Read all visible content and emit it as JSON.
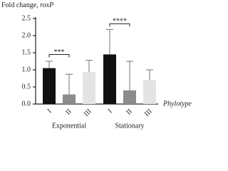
{
  "chart_data": {
    "type": "bar",
    "ylabel": [
      "Fold change,",
      "roxP"
    ],
    "xlabel": "Phylotype",
    "categories": [
      "I",
      "II",
      "III",
      "I",
      "II",
      "III"
    ],
    "groups": [
      "Exponential",
      "Stationary"
    ],
    "values": [
      1.05,
      0.28,
      0.93,
      1.45,
      0.4,
      0.7
    ],
    "errors": [
      0.2,
      0.59,
      0.35,
      0.73,
      0.85,
      0.3
    ],
    "colors": [
      "#111111",
      "#8c8c8c",
      "#e4e4e4",
      "#111111",
      "#8c8c8c",
      "#e4e4e4"
    ],
    "ylim": [
      0,
      2.5
    ],
    "yticks": [
      {
        "value": 0,
        "label": "0.0"
      },
      0.5,
      {
        "value": 1,
        "label": "1.0"
      },
      1.5,
      {
        "value": 2,
        "label": "2.0"
      },
      2.5
    ],
    "annotations": [
      {
        "text": "***",
        "group": "Exponential"
      },
      {
        "text": "****",
        "group": "Stationary"
      }
    ]
  }
}
